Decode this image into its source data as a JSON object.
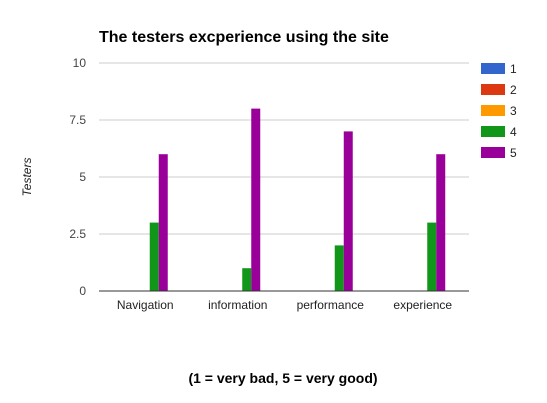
{
  "chart_data": {
    "type": "bar",
    "title": "The testers excperience using the site",
    "xlabel": "(1 = very bad, 5 = very good)",
    "ylabel": "Testers",
    "ylim": [
      0,
      10
    ],
    "yticks": [
      "0",
      "2.5",
      "5",
      "7.5",
      "10"
    ],
    "ytick_values": [
      0,
      2.5,
      5,
      7.5,
      10
    ],
    "grid": true,
    "legend_position": "right",
    "categories": [
      "Navigation",
      "information",
      "performance",
      "experience"
    ],
    "series": [
      {
        "name": "1",
        "color": "#3366cc",
        "values": [
          0,
          0,
          0,
          0
        ]
      },
      {
        "name": "2",
        "color": "#dc3912",
        "values": [
          0,
          0,
          0,
          0
        ]
      },
      {
        "name": "3",
        "color": "#ff9900",
        "values": [
          0,
          0,
          0,
          0
        ]
      },
      {
        "name": "4",
        "color": "#109618",
        "values": [
          3,
          1,
          2,
          3
        ]
      },
      {
        "name": "5",
        "color": "#990099",
        "values": [
          6,
          8,
          7,
          6
        ]
      }
    ]
  }
}
